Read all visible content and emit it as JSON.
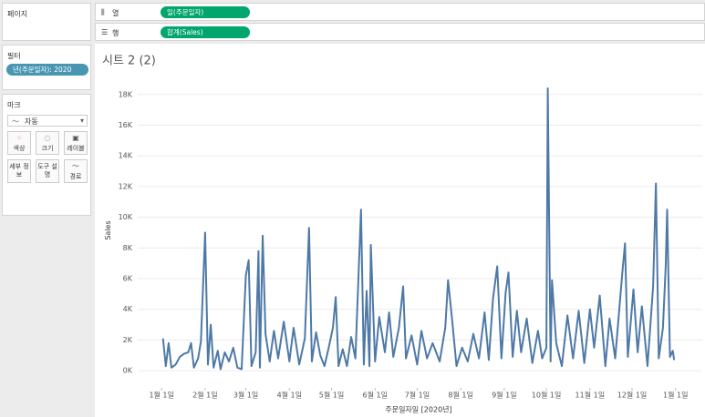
{
  "ui": {
    "pages_title": "페이지",
    "filters_title": "필터",
    "filter_pill": "년(주문일자): 2020",
    "marks_title": "마크",
    "mark_type": "자동",
    "mark_buttons": [
      "색상",
      "크기",
      "레이블",
      "세부 정보",
      "도구 설명",
      "경로"
    ],
    "columns_label": "열",
    "columns_pill": "일(주문일자)",
    "rows_label": "행",
    "rows_pill": "합계(Sales)",
    "sheet_title": "시트 2 (2)"
  },
  "chart_data": {
    "type": "line",
    "x_label": "주문일자일 [2020년]",
    "y_label": "Sales",
    "xlim": [
      "2019-12-15",
      "2021-01-20"
    ],
    "ylim": [
      -1000,
      18700
    ],
    "xticks": [
      {
        "value": "2020-01-01",
        "label": "1월 1일"
      },
      {
        "value": "2020-02-01",
        "label": "2월 1일"
      },
      {
        "value": "2020-03-01",
        "label": "3월 1일"
      },
      {
        "value": "2020-04-01",
        "label": "4월 1일"
      },
      {
        "value": "2020-05-01",
        "label": "5월 1일"
      },
      {
        "value": "2020-06-01",
        "label": "6월 1일"
      },
      {
        "value": "2020-07-01",
        "label": "7월 1일"
      },
      {
        "value": "2020-08-01",
        "label": "8월 1일"
      },
      {
        "value": "2020-09-01",
        "label": "9월 1일"
      },
      {
        "value": "2020-10-01",
        "label": "10월 1일"
      },
      {
        "value": "2020-11-01",
        "label": "11월 1일"
      },
      {
        "value": "2020-12-01",
        "label": "12월 1일"
      },
      {
        "value": "2021-01-01",
        "label": "1월 1일"
      }
    ],
    "yticks": [
      {
        "value": 0,
        "label": "0K"
      },
      {
        "value": 2000,
        "label": "2K"
      },
      {
        "value": 4000,
        "label": "4K"
      },
      {
        "value": 6000,
        "label": "6K"
      },
      {
        "value": 8000,
        "label": "8K"
      },
      {
        "value": 10000,
        "label": "10K"
      },
      {
        "value": 12000,
        "label": "12K"
      },
      {
        "value": 14000,
        "label": "14K"
      },
      {
        "value": 16000,
        "label": "16K"
      },
      {
        "value": 18000,
        "label": "18K"
      }
    ],
    "grid": true,
    "x": [
      "2020-01-02",
      "2020-01-04",
      "2020-01-06",
      "2020-01-08",
      "2020-01-11",
      "2020-01-14",
      "2020-01-17",
      "2020-01-20",
      "2020-01-22",
      "2020-01-24",
      "2020-01-27",
      "2020-01-29",
      "2020-02-01",
      "2020-02-03",
      "2020-02-05",
      "2020-02-07",
      "2020-02-10",
      "2020-02-12",
      "2020-02-15",
      "2020-02-18",
      "2020-02-21",
      "2020-02-24",
      "2020-02-27",
      "2020-03-01",
      "2020-03-03",
      "2020-03-05",
      "2020-03-08",
      "2020-03-10",
      "2020-03-11",
      "2020-03-13",
      "2020-03-15",
      "2020-03-18",
      "2020-03-21",
      "2020-03-24",
      "2020-03-28",
      "2020-04-01",
      "2020-04-04",
      "2020-04-08",
      "2020-04-12",
      "2020-04-15",
      "2020-04-17",
      "2020-04-20",
      "2020-04-23",
      "2020-04-26",
      "2020-04-29",
      "2020-05-02",
      "2020-05-04",
      "2020-05-06",
      "2020-05-09",
      "2020-05-12",
      "2020-05-15",
      "2020-05-18",
      "2020-05-22",
      "2020-05-24",
      "2020-05-26",
      "2020-05-28",
      "2020-05-29",
      "2020-06-01",
      "2020-06-04",
      "2020-06-08",
      "2020-06-11",
      "2020-06-14",
      "2020-06-18",
      "2020-06-21",
      "2020-06-23",
      "2020-06-27",
      "2020-07-01",
      "2020-07-04",
      "2020-07-08",
      "2020-07-12",
      "2020-07-17",
      "2020-07-21",
      "2020-07-23",
      "2020-07-26",
      "2020-07-29",
      "2020-08-02",
      "2020-08-06",
      "2020-08-10",
      "2020-08-14",
      "2020-08-18",
      "2020-08-21",
      "2020-08-24",
      "2020-08-27",
      "2020-08-30",
      "2020-09-02",
      "2020-09-04",
      "2020-09-07",
      "2020-09-10",
      "2020-09-13",
      "2020-09-17",
      "2020-09-21",
      "2020-09-25",
      "2020-09-28",
      "2020-10-01",
      "2020-10-02",
      "2020-10-04",
      "2020-10-05",
      "2020-10-08",
      "2020-10-12",
      "2020-10-16",
      "2020-10-20",
      "2020-10-24",
      "2020-10-28",
      "2020-11-01",
      "2020-11-04",
      "2020-11-08",
      "2020-11-12",
      "2020-11-15",
      "2020-11-19",
      "2020-11-24",
      "2020-11-26",
      "2020-11-28",
      "2020-12-02",
      "2020-12-05",
      "2020-12-08",
      "2020-12-12",
      "2020-12-16",
      "2020-12-18",
      "2020-12-20",
      "2020-12-23",
      "2020-12-25",
      "2020-12-26",
      "2020-12-28",
      "2020-12-30",
      "2020-12-31"
    ],
    "series": [
      {
        "name": "Sales",
        "color": "#4e79a7",
        "values": [
          2100,
          300,
          1800,
          200,
          400,
          900,
          1100,
          1200,
          1800,
          200,
          800,
          1900,
          9000,
          400,
          3000,
          200,
          1300,
          100,
          1200,
          600,
          1500,
          200,
          100,
          6200,
          7200,
          300,
          1200,
          7800,
          200,
          8800,
          2400,
          600,
          2600,
          800,
          3200,
          600,
          2800,
          400,
          2100,
          9300,
          600,
          2500,
          1000,
          300,
          1500,
          2800,
          4800,
          300,
          1400,
          300,
          2200,
          800,
          10500,
          400,
          5200,
          300,
          8200,
          600,
          3500,
          1200,
          3800,
          900,
          2800,
          5500,
          800,
          2300,
          400,
          2600,
          800,
          1800,
          600,
          2800,
          5900,
          3200,
          300,
          1500,
          600,
          2400,
          800,
          3800,
          700,
          4700,
          6800,
          800,
          5100,
          6400,
          900,
          3900,
          1200,
          3400,
          500,
          2600,
          800,
          1500,
          18400,
          600,
          5900,
          1800,
          300,
          3600,
          800,
          3900,
          500,
          4000,
          1500,
          4900,
          300,
          3400,
          800,
          6300,
          8300,
          900,
          5300,
          1200,
          4200,
          300,
          5500,
          12200,
          800,
          2800,
          6900,
          10500,
          900,
          1300,
          700
        ]
      }
    ]
  }
}
